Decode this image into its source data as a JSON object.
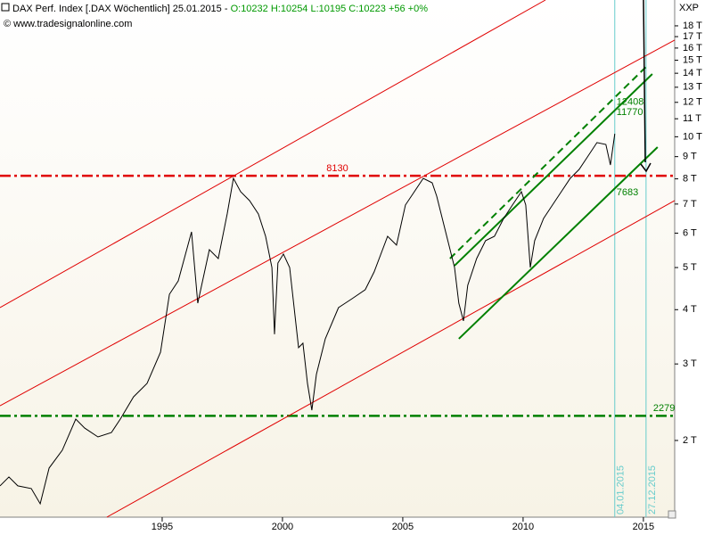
{
  "chart_data": {
    "type": "line",
    "title": "DAX Perf. Index [.DAX  Wöchentlich] 25.01.2015 - ",
    "quote": "O:10232 H:10254 L:10195 C:10223 +56 +0%",
    "subtitle": "© www.tradesignalonline.com",
    "axis_code": "XXP",
    "log_y": true,
    "xlim": [
      1988.26,
      2016.3
    ],
    "ylim": [
      1332,
      20640
    ],
    "xticks": [
      1995,
      2000,
      2005,
      2010,
      2015
    ],
    "yticks": [
      {
        "value": 2000,
        "label": "2 T"
      },
      {
        "value": 3000,
        "label": "3 T"
      },
      {
        "value": 4000,
        "label": "4 T"
      },
      {
        "value": 5000,
        "label": "5 T"
      },
      {
        "value": 6000,
        "label": "6 T"
      },
      {
        "value": 7000,
        "label": "7 T"
      },
      {
        "value": 8000,
        "label": "8 T"
      },
      {
        "value": 9000,
        "label": "9 T"
      },
      {
        "value": 10000,
        "label": "10 T"
      },
      {
        "value": 11000,
        "label": "11 T"
      },
      {
        "value": 12000,
        "label": "12 T"
      },
      {
        "value": 13000,
        "label": "13 T"
      },
      {
        "value": 14000,
        "label": "14 T"
      },
      {
        "value": 15000,
        "label": "15 T"
      },
      {
        "value": 16000,
        "label": "16 T"
      },
      {
        "value": 17000,
        "label": "17 T"
      },
      {
        "value": 18000,
        "label": "18 T"
      }
    ],
    "x": [
      1988.26,
      1988.63,
      1989.0,
      1989.56,
      1989.93,
      1990.3,
      1990.85,
      1991.41,
      1991.78,
      1992.33,
      1992.89,
      1993.26,
      1993.81,
      1994.37,
      1994.93,
      1995.3,
      1995.67,
      1996.22,
      1996.48,
      1996.96,
      1997.33,
      1997.7,
      1997.96,
      1998.26,
      1998.63,
      1999.0,
      1999.3,
      1999.56,
      1999.67,
      1999.81,
      2000.04,
      2000.3,
      2000.67,
      2000.85,
      2001.04,
      2001.22,
      2001.41,
      2001.78,
      2002.33,
      2002.89,
      2003.44,
      2003.81,
      2004.37,
      2004.74,
      2005.11,
      2005.48,
      2005.85,
      2006.22,
      2006.41,
      2006.78,
      2007.15,
      2007.33,
      2007.52,
      2007.7,
      2008.07,
      2008.44,
      2008.81,
      2009.19,
      2009.56,
      2009.93,
      2010.11,
      2010.3,
      2010.48,
      2010.85,
      2011.22,
      2011.59,
      2011.96,
      2012.33,
      2012.7,
      2013.07,
      2013.44,
      2013.63,
      2013.81
    ],
    "series": [
      {
        "name": "DAX",
        "color": "#000000",
        "values": [
          1572,
          1648,
          1572,
          1550,
          1430,
          1728,
          1899,
          2240,
          2136,
          2038,
          2086,
          2240,
          2520,
          2706,
          3193,
          4341,
          4660,
          6042,
          4140,
          5498,
          5244,
          6640,
          8024,
          7474,
          7130,
          6640,
          5902,
          5002,
          3510,
          5122,
          5370,
          5002,
          3270,
          3348,
          2706,
          2348,
          2838,
          3428,
          4044,
          4240,
          4446,
          4886,
          5902,
          5630,
          6964,
          7474,
          8024,
          7836,
          7300,
          6042,
          5002,
          4140,
          3768,
          4550,
          5244,
          5766,
          5902,
          6486,
          6964,
          7474,
          6964,
          5002,
          5766,
          6486,
          6964,
          7474,
          8024,
          8412,
          9028,
          9694,
          9600,
          8612,
          10162
        ]
      }
    ],
    "trend_lines": [
      {
        "color": "#e00000",
        "style": "solid",
        "width": 1,
        "x": [
          1988.26,
          2010.93
        ],
        "y": [
          4044,
          20640
        ]
      },
      {
        "color": "#e00000",
        "style": "solid",
        "width": 1,
        "x": [
          1988.26,
          2016.3
        ],
        "y": [
          2404,
          16688
        ]
      },
      {
        "color": "#e00000",
        "style": "solid",
        "width": 1,
        "x": [
          1992.7,
          2016.3
        ],
        "y": [
          1332,
          7130
        ]
      },
      {
        "color": "#008000",
        "style": "solid",
        "width": 2,
        "x": [
          2007.15,
          2015.37
        ],
        "y": [
          5050,
          13946
        ]
      },
      {
        "color": "#008000",
        "style": "dashed",
        "width": 2,
        "x": [
          2006.96,
          2015.11
        ],
        "y": [
          5244,
          14482
        ]
      },
      {
        "color": "#008000",
        "style": "solid",
        "width": 2,
        "x": [
          2007.33,
          2015.59
        ],
        "y": [
          3428,
          9466
        ]
      }
    ],
    "hlines": [
      {
        "value": 8130,
        "color": "#e00000"
      },
      {
        "value": 2279,
        "color": "#008000"
      }
    ],
    "price_labels": [
      12408,
      11770,
      7683
    ],
    "price_label_color": "#008000",
    "vlines": [
      {
        "x": 2013.81,
        "label": "04.01.2015",
        "color": "#66cccc"
      },
      {
        "x": 2015.11,
        "label": "27.12.2015",
        "color": "#66cccc"
      }
    ]
  }
}
